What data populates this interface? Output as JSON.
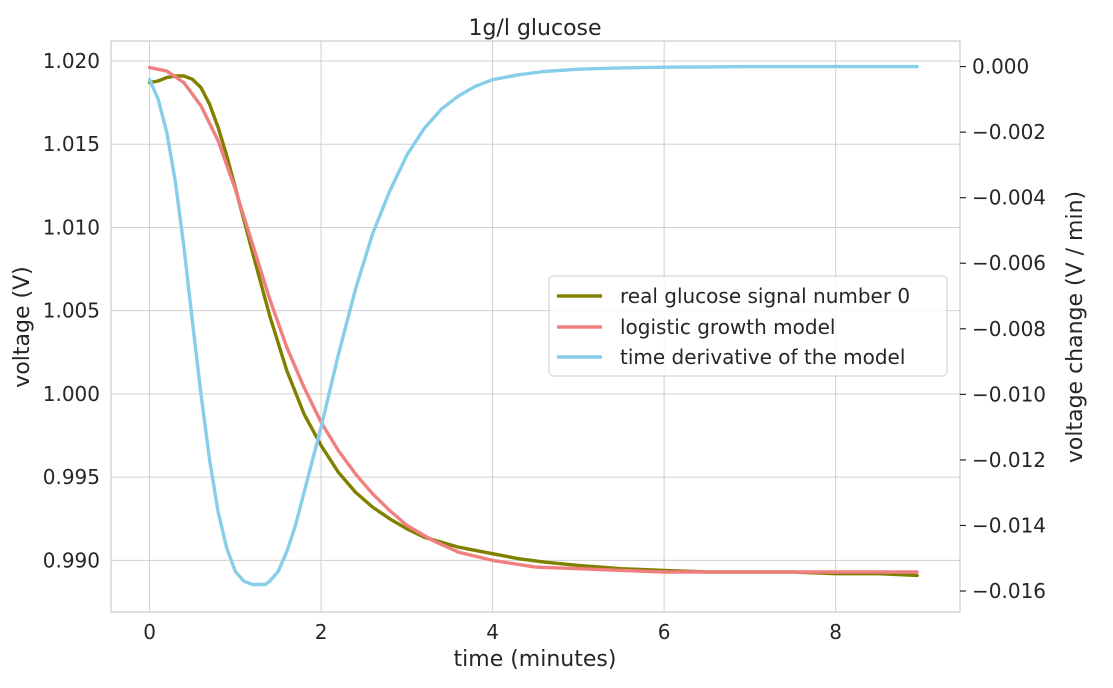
{
  "chart_data": {
    "type": "line",
    "title": "1g/l glucose",
    "xlabel": "time (minutes)",
    "ylabel_left": "voltage (V)",
    "ylabel_right": "voltage change (V / min)",
    "xlim": [
      -0.45,
      9.45
    ],
    "ylim_left": [
      0.9869,
      1.0212
    ],
    "ylim_right": [
      -0.01664,
      0.00078
    ],
    "x_ticks": [
      0,
      2,
      4,
      6,
      8
    ],
    "x_tick_labels": [
      "0",
      "2",
      "4",
      "6",
      "8"
    ],
    "y_left_ticks": [
      0.99,
      0.995,
      1.0,
      1.005,
      1.01,
      1.015,
      1.02
    ],
    "y_left_tick_labels": [
      "0.990",
      "0.995",
      "1.000",
      "1.005",
      "1.010",
      "1.015",
      "1.020"
    ],
    "y_right_ticks": [
      -0.016,
      -0.014,
      -0.012,
      -0.01,
      -0.008,
      -0.006,
      -0.004,
      -0.002,
      0.0
    ],
    "y_right_tick_labels": [
      "−0.016",
      "−0.014",
      "−0.012",
      "−0.010",
      "−0.008",
      "−0.006",
      "−0.004",
      "−0.002",
      "0.000"
    ],
    "grid": true,
    "legend_position": "center-right",
    "series": [
      {
        "name": "real glucose signal number 0",
        "axis": "left",
        "color": "#808000",
        "x": [
          0,
          0.1,
          0.2,
          0.3,
          0.4,
          0.5,
          0.6,
          0.7,
          0.8,
          0.9,
          1.0,
          1.2,
          1.4,
          1.6,
          1.8,
          2.0,
          2.2,
          2.4,
          2.6,
          2.8,
          3.0,
          3.2,
          3.4,
          3.6,
          3.8,
          4.0,
          4.3,
          4.6,
          5.0,
          5.5,
          6.0,
          6.5,
          7.0,
          7.5,
          8.0,
          8.5,
          8.95
        ],
        "values": [
          1.0187,
          1.0188,
          1.019,
          1.0191,
          1.0191,
          1.0189,
          1.0184,
          1.0174,
          1.016,
          1.0143,
          1.0124,
          1.0085,
          1.0047,
          1.0014,
          0.9988,
          0.9969,
          0.9953,
          0.9941,
          0.9932,
          0.9925,
          0.9919,
          0.9914,
          0.9911,
          0.9908,
          0.9906,
          0.9904,
          0.9901,
          0.9899,
          0.9897,
          0.9895,
          0.9894,
          0.9893,
          0.9893,
          0.9893,
          0.9892,
          0.9892,
          0.9891
        ]
      },
      {
        "name": "logistic growth model",
        "axis": "left",
        "color": "#f08080",
        "x": [
          0,
          0.2,
          0.4,
          0.6,
          0.8,
          1.0,
          1.2,
          1.4,
          1.6,
          1.8,
          2.0,
          2.2,
          2.4,
          2.6,
          2.8,
          3.0,
          3.3,
          3.6,
          4.0,
          4.5,
          5.0,
          5.5,
          6.0,
          7.0,
          8.0,
          8.95
        ],
        "values": [
          1.0196,
          1.0194,
          1.0187,
          1.0173,
          1.0152,
          1.0123,
          1.009,
          1.0057,
          1.0028,
          1.0004,
          0.9983,
          0.9966,
          0.9952,
          0.994,
          0.993,
          0.9921,
          0.9912,
          0.9905,
          0.99,
          0.9896,
          0.9895,
          0.9894,
          0.9893,
          0.9893,
          0.9893,
          0.9893
        ]
      },
      {
        "name": "time derivative of the model",
        "axis": "right",
        "color": "#87ceeb",
        "x": [
          0,
          0.1,
          0.2,
          0.3,
          0.4,
          0.5,
          0.6,
          0.7,
          0.8,
          0.9,
          1.0,
          1.1,
          1.2,
          1.3,
          1.35,
          1.4,
          1.5,
          1.6,
          1.7,
          1.8,
          1.9,
          2.0,
          2.2,
          2.4,
          2.6,
          2.8,
          3.0,
          3.2,
          3.4,
          3.6,
          3.8,
          4.0,
          4.3,
          4.6,
          5.0,
          5.5,
          6.0,
          6.5,
          7.0,
          8.0,
          8.95
        ],
        "values": [
          -0.0004,
          -0.001,
          -0.002,
          -0.0035,
          -0.0055,
          -0.0078,
          -0.01,
          -0.012,
          -0.0136,
          -0.0147,
          -0.0154,
          -0.0157,
          -0.0158,
          -0.0158,
          -0.0158,
          -0.0157,
          -0.0154,
          -0.0148,
          -0.014,
          -0.013,
          -0.012,
          -0.011,
          -0.0088,
          -0.0068,
          -0.0051,
          -0.0038,
          -0.0027,
          -0.0019,
          -0.0013,
          -0.0009,
          -0.0006,
          -0.0004,
          -0.00025,
          -0.00015,
          -8e-05,
          -4e-05,
          -2e-05,
          -1e-05,
          0,
          0,
          0
        ]
      }
    ]
  }
}
